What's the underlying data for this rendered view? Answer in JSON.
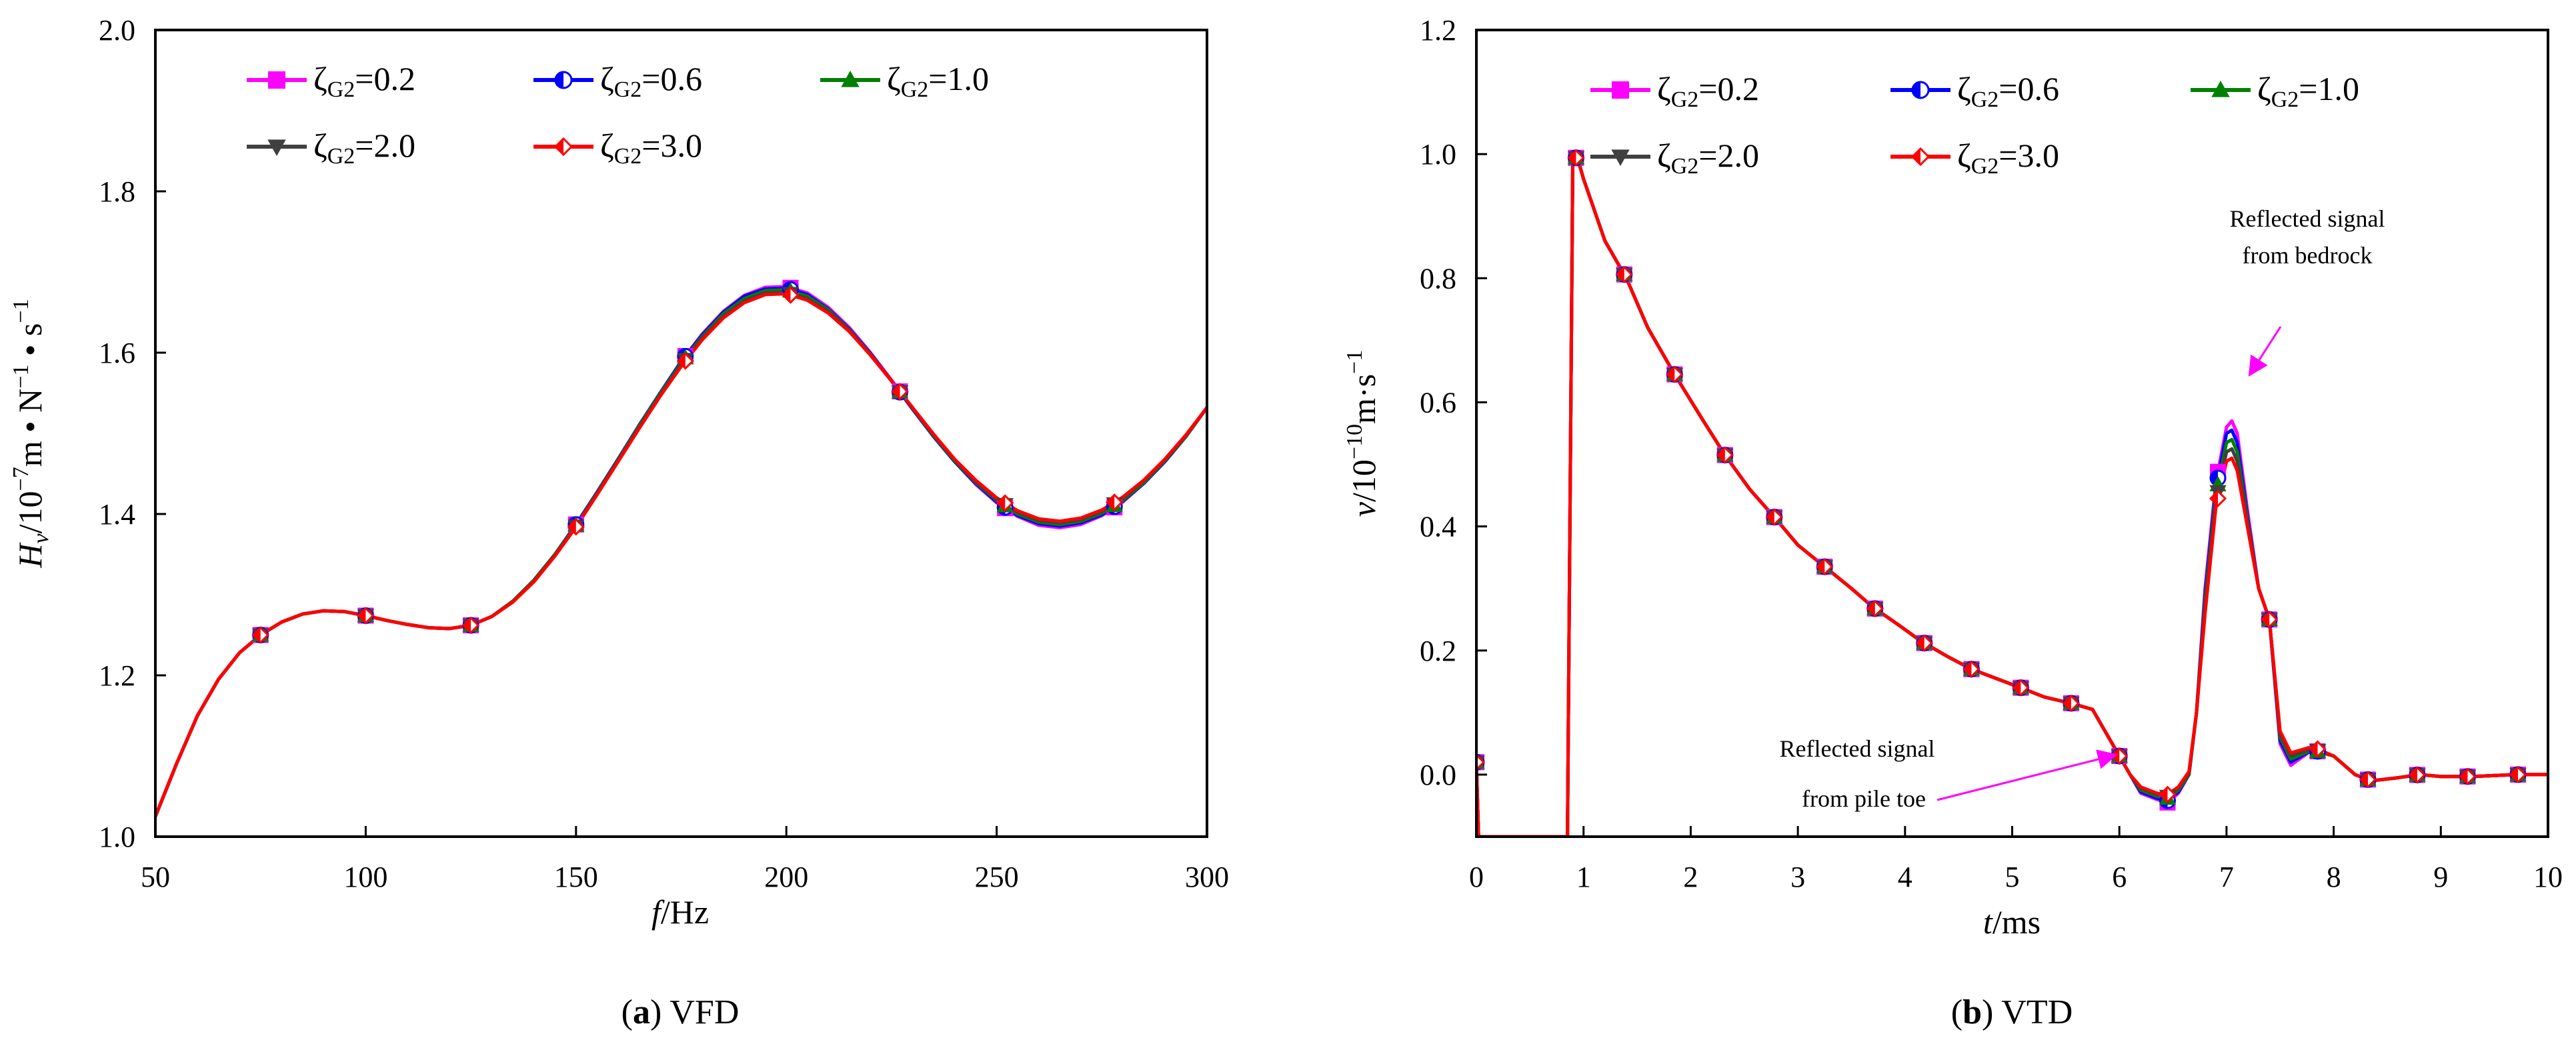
{
  "chart_data": [
    {
      "id": "a",
      "type": "line",
      "caption_label": "a",
      "caption_text": "VFD",
      "xlabel": "f",
      "xlabel_unit": "/Hz",
      "ylabel": "H",
      "ylabel_sub": "v",
      "ylabel_rest": "/10",
      "ylabel_exp": "−7",
      "ylabel_unit_a": "m • N",
      "ylabel_unit_exp1": "−1",
      "ylabel_unit_b": " • s",
      "ylabel_unit_exp2": "−1",
      "xlim": [
        50,
        300
      ],
      "ylim": [
        1.0,
        2.0
      ],
      "xticks": [
        50,
        100,
        150,
        200,
        250,
        300
      ],
      "xtick_labels": [
        "50",
        "100",
        "150",
        "200",
        "250",
        "300"
      ],
      "yticks": [
        1.0,
        1.2,
        1.4,
        1.6,
        1.8,
        2.0
      ],
      "ytick_labels": [
        "1.0",
        "1.2",
        "1.4",
        "1.6",
        "1.8",
        "2.0"
      ],
      "legend_position": "top",
      "x": [
        50,
        55,
        60,
        65,
        70,
        75,
        80,
        85,
        90,
        95,
        100,
        105,
        110,
        115,
        120,
        125,
        130,
        135,
        140,
        145,
        150,
        155,
        160,
        165,
        170,
        175,
        180,
        185,
        190,
        195,
        200,
        205,
        210,
        215,
        220,
        225,
        230,
        235,
        240,
        245,
        250,
        255,
        260,
        265,
        270,
        275,
        280,
        285,
        290,
        295,
        300
      ],
      "marker_x": [
        75,
        100,
        125,
        150,
        176,
        201,
        227,
        252,
        278
      ],
      "series": [
        {
          "name": "ζG2=0.2",
          "greek": "ζ",
          "sub": "G2",
          "value": "=0.2",
          "color": "#ff00ff",
          "marker": "square",
          "values": [
            1.025,
            1.09,
            1.15,
            1.195,
            1.228,
            1.25,
            1.266,
            1.276,
            1.28,
            1.279,
            1.274,
            1.268,
            1.263,
            1.259,
            1.258,
            1.262,
            1.273,
            1.292,
            1.318,
            1.35,
            1.387,
            1.427,
            1.468,
            1.51,
            1.55,
            1.589,
            1.623,
            1.651,
            1.671,
            1.681,
            1.682,
            1.674,
            1.656,
            1.631,
            1.6,
            1.566,
            1.531,
            1.497,
            1.465,
            1.437,
            1.414,
            1.397,
            1.386,
            1.383,
            1.387,
            1.398,
            1.415,
            1.438,
            1.465,
            1.496,
            1.532
          ]
        },
        {
          "name": "ζG2=0.6",
          "greek": "ζ",
          "sub": "G2",
          "value": "=0.6",
          "color": "#0000ff",
          "marker": "circle-half",
          "values": [
            1.025,
            1.09,
            1.15,
            1.195,
            1.228,
            1.25,
            1.266,
            1.276,
            1.28,
            1.279,
            1.274,
            1.268,
            1.263,
            1.259,
            1.258,
            1.262,
            1.273,
            1.292,
            1.318,
            1.35,
            1.387,
            1.427,
            1.468,
            1.51,
            1.55,
            1.589,
            1.622,
            1.65,
            1.67,
            1.679,
            1.68,
            1.672,
            1.654,
            1.629,
            1.599,
            1.565,
            1.53,
            1.496,
            1.465,
            1.438,
            1.415,
            1.398,
            1.388,
            1.385,
            1.389,
            1.399,
            1.416,
            1.438,
            1.465,
            1.496,
            1.532
          ]
        },
        {
          "name": "ζG2=1.0",
          "greek": "ζ",
          "sub": "G2",
          "value": "=1.0",
          "color": "#008000",
          "marker": "triangle-up",
          "values": [
            1.025,
            1.09,
            1.15,
            1.195,
            1.228,
            1.25,
            1.266,
            1.276,
            1.28,
            1.279,
            1.274,
            1.268,
            1.263,
            1.259,
            1.258,
            1.262,
            1.273,
            1.292,
            1.318,
            1.35,
            1.386,
            1.426,
            1.467,
            1.509,
            1.549,
            1.587,
            1.62,
            1.648,
            1.667,
            1.677,
            1.678,
            1.67,
            1.653,
            1.628,
            1.598,
            1.565,
            1.531,
            1.497,
            1.466,
            1.439,
            1.417,
            1.4,
            1.39,
            1.387,
            1.391,
            1.401,
            1.417,
            1.439,
            1.466,
            1.496,
            1.532
          ]
        },
        {
          "name": "ζG2=2.0",
          "greek": "ζ",
          "sub": "G2",
          "value": "=2.0",
          "color": "#404040",
          "marker": "triangle-down",
          "values": [
            1.025,
            1.09,
            1.15,
            1.195,
            1.228,
            1.25,
            1.266,
            1.276,
            1.28,
            1.279,
            1.274,
            1.268,
            1.263,
            1.259,
            1.258,
            1.262,
            1.273,
            1.291,
            1.317,
            1.349,
            1.385,
            1.425,
            1.466,
            1.507,
            1.547,
            1.585,
            1.618,
            1.645,
            1.664,
            1.674,
            1.675,
            1.667,
            1.651,
            1.627,
            1.597,
            1.565,
            1.531,
            1.498,
            1.467,
            1.44,
            1.418,
            1.402,
            1.392,
            1.389,
            1.393,
            1.403,
            1.419,
            1.441,
            1.467,
            1.497,
            1.532
          ]
        },
        {
          "name": "ζG2=3.0",
          "greek": "ζ",
          "sub": "G2",
          "value": "=3.0",
          "color": "#ff0000",
          "marker": "diamond-half",
          "values": [
            1.025,
            1.09,
            1.15,
            1.195,
            1.228,
            1.25,
            1.266,
            1.276,
            1.28,
            1.279,
            1.274,
            1.268,
            1.263,
            1.259,
            1.258,
            1.262,
            1.273,
            1.291,
            1.316,
            1.348,
            1.384,
            1.424,
            1.465,
            1.506,
            1.546,
            1.583,
            1.616,
            1.643,
            1.662,
            1.672,
            1.673,
            1.665,
            1.649,
            1.626,
            1.597,
            1.565,
            1.532,
            1.499,
            1.468,
            1.442,
            1.42,
            1.404,
            1.394,
            1.391,
            1.395,
            1.405,
            1.421,
            1.442,
            1.468,
            1.498,
            1.532
          ]
        }
      ]
    },
    {
      "id": "b",
      "type": "line",
      "caption_label": "b",
      "caption_text": "VTD",
      "xlabel": "t",
      "xlabel_unit": "/ms",
      "ylabel": "v",
      "ylabel_rest": "/10",
      "ylabel_exp": "−10",
      "ylabel_unit_a": "m·s",
      "ylabel_unit_exp1": "−1",
      "xlim": [
        0,
        10
      ],
      "ylim": [
        -0.1,
        1.2
      ],
      "xticks": [
        0,
        1,
        2,
        3,
        4,
        5,
        6,
        7,
        8,
        9,
        10
      ],
      "xtick_labels": [
        "0",
        "1",
        "2",
        "3",
        "4",
        "5",
        "6",
        "7",
        "8",
        "9",
        "10"
      ],
      "yticks": [
        0.0,
        0.2,
        0.4,
        0.6,
        0.8,
        1.0,
        1.2
      ],
      "ytick_labels": [
        "0.0",
        "0.2",
        "0.4",
        "0.6",
        "0.8",
        "1.0",
        "1.2"
      ],
      "legend_position": "top-right",
      "annotations": [
        {
          "id": "bedrock",
          "lines": [
            "Reflected signal",
            "from bedrock"
          ],
          "target": [
            7.05,
            0.6
          ]
        },
        {
          "id": "pile-toe",
          "lines": [
            "Reflected signal",
            "from pile toe"
          ],
          "target": [
            6.0,
            0.03
          ]
        }
      ],
      "x": [
        0,
        0.02,
        0.85,
        0.9,
        0.95,
        1.0,
        1.1,
        1.2,
        1.4,
        1.6,
        1.85,
        2.1,
        2.32,
        2.55,
        2.78,
        3.0,
        3.25,
        3.5,
        3.7,
        3.95,
        4.15,
        4.4,
        4.62,
        4.85,
        5.08,
        5.3,
        5.55,
        5.75,
        5.9,
        6.0,
        6.1,
        6.2,
        6.35,
        6.45,
        6.55,
        6.65,
        6.72,
        6.8,
        6.9,
        7.0,
        7.05,
        7.1,
        7.2,
        7.3,
        7.4,
        7.5,
        7.6,
        7.8,
        8.0,
        8.2,
        8.35,
        8.6,
        8.8,
        9.0,
        9.3,
        9.7,
        10.0
      ],
      "marker_x": [
        0,
        0.93,
        1.38,
        1.85,
        2.32,
        2.78,
        3.25,
        3.72,
        4.18,
        4.62,
        5.08,
        5.55,
        6.0,
        6.45,
        6.92,
        7.4,
        7.85,
        8.32,
        8.78,
        9.25,
        9.72
      ],
      "series": [
        {
          "name": "ζG2=0.2",
          "greek": "ζ",
          "sub": "G2",
          "value": "=0.2",
          "color": "#ff00ff",
          "marker": "square",
          "values": [
            0.02,
            -0.1,
            -0.1,
            1.0,
            0.99,
            0.96,
            0.91,
            0.86,
            0.8,
            0.72,
            0.645,
            0.575,
            0.515,
            0.46,
            0.415,
            0.37,
            0.335,
            0.3,
            0.27,
            0.24,
            0.215,
            0.19,
            0.17,
            0.155,
            0.14,
            0.125,
            0.115,
            0.105,
            0.06,
            0.03,
            0.0,
            -0.03,
            -0.04,
            -0.045,
            -0.03,
            0.0,
            0.1,
            0.3,
            0.47,
            0.56,
            0.57,
            0.55,
            0.42,
            0.3,
            0.25,
            0.05,
            0.015,
            0.04,
            0.03,
            0.0,
            -0.01,
            -0.005,
            0.0,
            -0.003,
            -0.003,
            0.0,
            0.0
          ]
        },
        {
          "name": "ζG2=0.6",
          "greek": "ζ",
          "sub": "G2",
          "value": "=0.6",
          "color": "#0000ff",
          "marker": "circle-half",
          "values": [
            0.02,
            -0.1,
            -0.1,
            1.0,
            0.99,
            0.96,
            0.91,
            0.86,
            0.8,
            0.72,
            0.645,
            0.575,
            0.515,
            0.46,
            0.415,
            0.37,
            0.335,
            0.3,
            0.27,
            0.24,
            0.215,
            0.19,
            0.17,
            0.155,
            0.14,
            0.125,
            0.115,
            0.105,
            0.06,
            0.03,
            0.0,
            -0.028,
            -0.038,
            -0.042,
            -0.028,
            0.0,
            0.1,
            0.29,
            0.46,
            0.55,
            0.555,
            0.535,
            0.41,
            0.3,
            0.25,
            0.055,
            0.02,
            0.04,
            0.03,
            0.0,
            -0.01,
            -0.005,
            0.0,
            -0.003,
            -0.003,
            0.0,
            0.0
          ]
        },
        {
          "name": "ζG2=1.0",
          "greek": "ζ",
          "sub": "G2",
          "value": "=1.0",
          "color": "#008000",
          "marker": "triangle-up",
          "values": [
            0.02,
            -0.1,
            -0.1,
            1.0,
            0.99,
            0.96,
            0.91,
            0.86,
            0.8,
            0.72,
            0.645,
            0.575,
            0.515,
            0.46,
            0.415,
            0.37,
            0.335,
            0.3,
            0.27,
            0.24,
            0.215,
            0.19,
            0.17,
            0.155,
            0.14,
            0.125,
            0.115,
            0.105,
            0.06,
            0.03,
            0.0,
            -0.025,
            -0.035,
            -0.038,
            -0.025,
            0.0,
            0.1,
            0.28,
            0.45,
            0.535,
            0.54,
            0.52,
            0.405,
            0.3,
            0.25,
            0.06,
            0.025,
            0.04,
            0.03,
            0.0,
            -0.01,
            -0.005,
            0.0,
            -0.003,
            -0.003,
            0.0,
            0.0
          ]
        },
        {
          "name": "ζG2=2.0",
          "greek": "ζ",
          "sub": "G2",
          "value": "=2.0",
          "color": "#404040",
          "marker": "triangle-down",
          "values": [
            0.02,
            -0.1,
            -0.1,
            1.0,
            0.99,
            0.96,
            0.91,
            0.86,
            0.8,
            0.72,
            0.645,
            0.575,
            0.515,
            0.46,
            0.415,
            0.37,
            0.335,
            0.3,
            0.27,
            0.24,
            0.215,
            0.19,
            0.17,
            0.155,
            0.14,
            0.125,
            0.115,
            0.105,
            0.06,
            0.03,
            0.0,
            -0.022,
            -0.032,
            -0.035,
            -0.022,
            0.002,
            0.1,
            0.27,
            0.44,
            0.52,
            0.525,
            0.505,
            0.4,
            0.3,
            0.25,
            0.065,
            0.03,
            0.042,
            0.03,
            0.0,
            -0.01,
            -0.005,
            0.0,
            -0.003,
            -0.003,
            0.0,
            0.0
          ]
        },
        {
          "name": "ζG2=3.0",
          "greek": "ζ",
          "sub": "G2",
          "value": "=3.0",
          "color": "#ff0000",
          "marker": "diamond-half",
          "values": [
            0.02,
            -0.1,
            -0.1,
            1.0,
            0.99,
            0.96,
            0.91,
            0.86,
            0.8,
            0.72,
            0.645,
            0.575,
            0.515,
            0.46,
            0.415,
            0.37,
            0.335,
            0.3,
            0.27,
            0.24,
            0.215,
            0.19,
            0.17,
            0.155,
            0.14,
            0.125,
            0.115,
            0.105,
            0.06,
            0.03,
            0.0,
            -0.02,
            -0.03,
            -0.032,
            -0.02,
            0.005,
            0.1,
            0.26,
            0.43,
            0.505,
            0.51,
            0.49,
            0.395,
            0.3,
            0.25,
            0.07,
            0.035,
            0.045,
            0.03,
            0.0,
            -0.01,
            -0.005,
            0.0,
            -0.003,
            -0.003,
            0.0,
            0.0
          ]
        }
      ]
    }
  ]
}
